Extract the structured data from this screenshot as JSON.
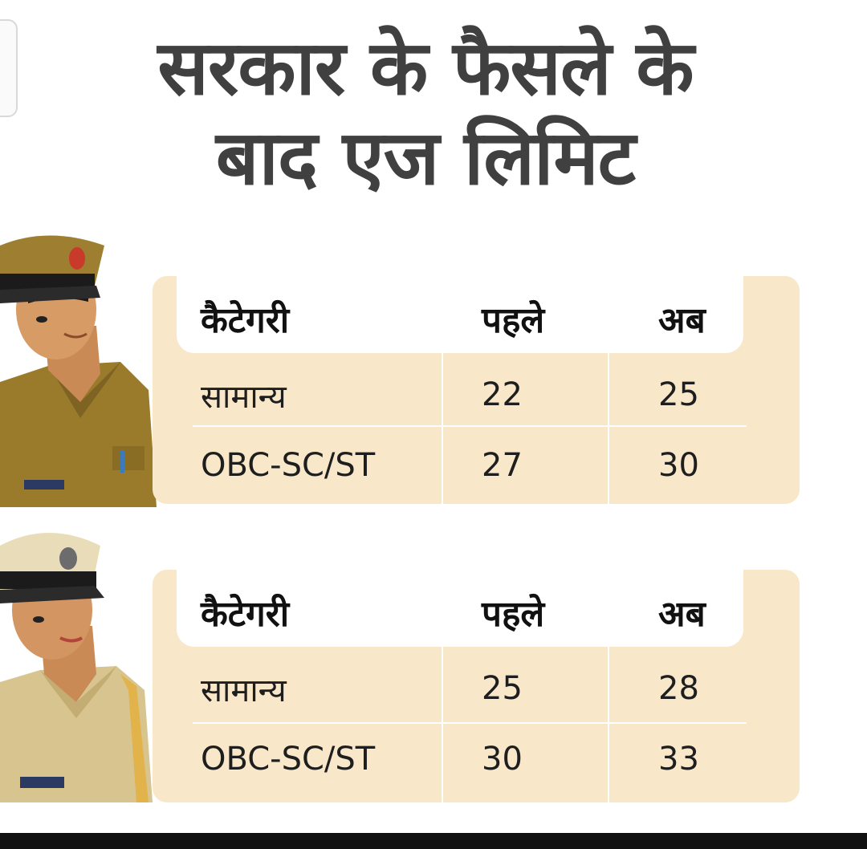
{
  "title": {
    "line1": "सरकार के फैसले के",
    "line2": "बाद एज लिमिट"
  },
  "tables": [
    {
      "headers": [
        "कैटेगरी",
        "पहले",
        "अब"
      ],
      "rows": [
        [
          "सामान्य",
          "22",
          "25"
        ],
        [
          "OBC-SC/ST",
          "27",
          "30"
        ]
      ]
    },
    {
      "headers": [
        "कैटेगरी",
        "पहले",
        "अब"
      ],
      "rows": [
        [
          "सामान्य",
          "25",
          "28"
        ],
        [
          "OBC-SC/ST",
          "30",
          "33"
        ]
      ]
    }
  ],
  "colors": {
    "panel": "#f8e7c9",
    "title": "#404040",
    "uniform_male": "#9a7b2c",
    "uniform_female": "#d8c48e"
  }
}
